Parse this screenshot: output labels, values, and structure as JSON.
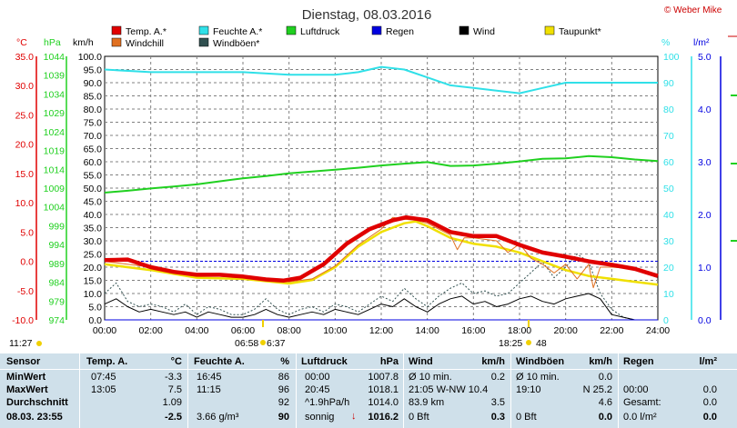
{
  "title": "Dienstag, 08.03.2016",
  "copyright": "© Weber Mike",
  "axis_units": {
    "temp": "°C",
    "pressure": "hPa",
    "wind": "km/h",
    "humidity": "%",
    "rain": "l/m²"
  },
  "legend": [
    {
      "label": "Temp. A.*",
      "color": "#e00000"
    },
    {
      "label": "Feuchte A.*",
      "color": "#30e0e8"
    },
    {
      "label": "Luftdruck",
      "color": "#20d020"
    },
    {
      "label": "Regen",
      "color": "#0000e0"
    },
    {
      "label": "Wind",
      "color": "#000000"
    },
    {
      "label": "Taupunkt*",
      "color": "#f0e000"
    },
    {
      "label": "Windchill",
      "color": "#e07020"
    },
    {
      "label": "Windböen*",
      "color": "#305050"
    }
  ],
  "colors": {
    "temp": "#e00000",
    "humidity": "#30e0e8",
    "pressure": "#20d020",
    "rain": "#0000e0",
    "wind": "#000000",
    "dewpoint": "#f0e000",
    "windchill": "#e07020",
    "gust": "#305050",
    "grid": "#808080"
  },
  "sun": {
    "sunrise_label": "06:58",
    "sunset_label": "18:25",
    "day_length_a": "6:37",
    "day_length_b": "48",
    "now_label": "11:27"
  },
  "chart_data": {
    "type": "line",
    "x_ticks": [
      "00:00",
      "02:00",
      "04:00",
      "06:00",
      "08:00",
      "10:00",
      "12:00",
      "14:00",
      "16:00",
      "18:00",
      "20:00",
      "22:00",
      "24:00"
    ],
    "temp_ticks": [
      "35.0",
      "30.0",
      "25.0",
      "20.0",
      "15.0",
      "10.0",
      "5.0",
      "0.0",
      "-5.0",
      "-10.0"
    ],
    "pressure_ticks": [
      "1044",
      "1039",
      "1034",
      "1029",
      "1024",
      "1019",
      "1014",
      "1009",
      "1004",
      "999",
      "994",
      "989",
      "984",
      "979",
      "974"
    ],
    "wind_ticks": [
      "100.0",
      "95.0",
      "90.0",
      "85.0",
      "80.0",
      "75.0",
      "70.0",
      "65.0",
      "60.0",
      "55.0",
      "50.0",
      "45.0",
      "40.0",
      "35.0",
      "30.0",
      "25.0",
      "20.0",
      "15.0",
      "10.0",
      "5.0",
      "0.0"
    ],
    "humidity_ticks": [
      "100",
      "90",
      "80",
      "70",
      "60",
      "50",
      "40",
      "30",
      "20",
      "10",
      "0"
    ],
    "rain_ticks": [
      "5.0",
      "4.0",
      "3.0",
      "2.0",
      "1.0",
      "0.0"
    ],
    "temp_range": [
      -10,
      35
    ],
    "x_range_hours": [
      0,
      24
    ],
    "series": [
      {
        "name": "Temp. A.*",
        "axis": "temp",
        "x": [
          0,
          1,
          2,
          3,
          4,
          5,
          6,
          7,
          7.75,
          8.5,
          9.5,
          10.5,
          11.5,
          12.5,
          13.08,
          14,
          15,
          16,
          17,
          18,
          19,
          20,
          21,
          22,
          23,
          24
        ],
        "y": [
          0.2,
          0.3,
          -1.0,
          -1.8,
          -2.3,
          -2.3,
          -2.6,
          -3.1,
          -3.3,
          -2.8,
          -0.5,
          3.0,
          5.5,
          7.0,
          7.5,
          7.0,
          5.0,
          4.3,
          4.3,
          2.8,
          1.5,
          0.8,
          0.0,
          -0.6,
          -1.3,
          -2.5
        ]
      },
      {
        "name": "Feuchte A.*",
        "axis": "humidity",
        "x": [
          0,
          2,
          4,
          6,
          8,
          10,
          11,
          12,
          13,
          14,
          15,
          16,
          17,
          18,
          19,
          20,
          21,
          22,
          23,
          24
        ],
        "y": [
          95,
          94,
          94,
          94,
          93,
          93,
          94,
          96,
          95,
          92,
          89,
          88,
          87,
          86,
          88,
          90,
          90,
          90,
          90,
          90
        ]
      },
      {
        "name": "Luftdruck",
        "axis": "pressure",
        "x": [
          0,
          1,
          2,
          3,
          4,
          5,
          6,
          7,
          8,
          9,
          10,
          11,
          12,
          13,
          14,
          15,
          16,
          17,
          18,
          19,
          20,
          21,
          22,
          23,
          24
        ],
        "y": [
          1007.8,
          1008.3,
          1008.9,
          1009.4,
          1010.0,
          1010.8,
          1011.6,
          1012.2,
          1012.9,
          1013.4,
          1013.9,
          1014.4,
          1015.0,
          1015.5,
          1015.9,
          1014.9,
          1015.0,
          1015.5,
          1016.1,
          1016.8,
          1016.9,
          1017.5,
          1017.2,
          1016.6,
          1016.2
        ]
      },
      {
        "name": "Taupunkt*",
        "axis": "temp",
        "x": [
          0,
          2,
          4,
          6,
          8,
          9,
          10,
          11,
          12,
          13,
          13.5,
          14,
          15,
          16,
          17,
          18,
          19,
          20,
          21,
          22,
          23,
          24
        ],
        "y": [
          -0.5,
          -1.5,
          -2.8,
          -3.0,
          -3.8,
          -3.2,
          -1.0,
          2.5,
          5.0,
          6.5,
          6.8,
          6.0,
          4.0,
          3.0,
          2.5,
          1.5,
          0.0,
          -1.5,
          -2.5,
          -3.0,
          -3.5,
          -4.0
        ]
      },
      {
        "name": "Windchill",
        "axis": "temp",
        "x": [
          0,
          2,
          4,
          6,
          8,
          9,
          10,
          11,
          12,
          12.5,
          13,
          13.5,
          14,
          15,
          15.3,
          15.6,
          16,
          17,
          17.5,
          18,
          18.5,
          19,
          19.5,
          20,
          20.5,
          21,
          21.2,
          21.5,
          22,
          23,
          24
        ],
        "y": [
          0.0,
          -1.0,
          -2.3,
          -2.8,
          -3.5,
          -3.0,
          -0.8,
          2.8,
          5.5,
          7.5,
          7.2,
          7.0,
          6.5,
          4.5,
          2.0,
          4.0,
          4.0,
          3.5,
          1.5,
          3.0,
          0.5,
          -0.5,
          -2.0,
          -0.5,
          -3.0,
          -0.5,
          -4.5,
          -1.0,
          -1.0,
          -1.3,
          -2.5
        ]
      },
      {
        "name": "Wind",
        "axis": "wind",
        "x": [
          0,
          0.5,
          1,
          1.5,
          2,
          2.5,
          3,
          3.5,
          4,
          4.5,
          5,
          5.5,
          6,
          6.5,
          7,
          7.5,
          8,
          8.5,
          9,
          9.5,
          10,
          10.5,
          11,
          11.5,
          12,
          12.5,
          13,
          13.5,
          14,
          14.5,
          15,
          15.5,
          16,
          16.5,
          17,
          17.5,
          18,
          18.5,
          19,
          19.5,
          20,
          20.5,
          21,
          21.5,
          22,
          22.5,
          23,
          24
        ],
        "y": [
          6,
          8,
          5,
          3,
          4,
          3,
          2,
          3,
          1,
          3,
          2,
          1,
          1,
          2,
          4,
          2,
          1,
          2,
          3,
          2,
          4,
          3,
          2,
          4,
          6,
          5,
          8,
          5,
          3,
          6,
          8,
          9,
          6,
          7,
          5,
          6,
          8,
          9,
          7,
          6,
          8,
          9,
          10,
          8,
          2,
          1,
          0,
          0
        ]
      },
      {
        "name": "Windböen*",
        "axis": "wind",
        "x": [
          0,
          0.5,
          1,
          1.5,
          2,
          2.5,
          3,
          3.5,
          4,
          4.5,
          5,
          5.5,
          6,
          6.5,
          7,
          7.5,
          8,
          8.5,
          9,
          9.5,
          10,
          10.5,
          11,
          11.5,
          12,
          12.5,
          13,
          13.5,
          14,
          14.5,
          15,
          15.5,
          16,
          16.5,
          17,
          17.5,
          18,
          18.5,
          19,
          19.5,
          20,
          20.5,
          21,
          21.5,
          22,
          22.5,
          23,
          24
        ],
        "y": [
          10,
          14,
          7,
          5,
          6,
          5,
          3,
          6,
          2,
          5,
          4,
          2,
          2,
          4,
          8,
          4,
          2,
          4,
          5,
          3,
          6,
          5,
          3,
          6,
          9,
          7,
          12,
          8,
          5,
          9,
          12,
          14,
          10,
          11,
          9,
          10,
          14,
          18,
          22,
          16,
          20,
          25,
          22,
          10,
          4,
          1,
          0,
          0
        ]
      }
    ],
    "rain_series": {
      "name": "Regen",
      "axis": "rain",
      "x": [
        0,
        24
      ],
      "y": [
        0,
        0
      ]
    },
    "reference_lines": [
      {
        "axis": "temp",
        "value": 0,
        "style": "dashed",
        "color": "#0000e0"
      }
    ]
  },
  "table": {
    "headers": {
      "sensor": "Sensor",
      "temp": "Temp. A.",
      "temp_unit": "°C",
      "hum": "Feuchte A.",
      "hum_unit": "%",
      "press": "Luftdruck",
      "press_unit": "hPa",
      "wind": "Wind",
      "wind_unit": "km/h",
      "gust": "Windböen",
      "gust_unit": "km/h",
      "rain": "Regen",
      "rain_unit": "l/m²"
    },
    "rows": [
      {
        "label": "MinWert",
        "temp_time": "07:45",
        "temp_val": "-3.3",
        "hum_time": "16:45",
        "hum_val": "86",
        "press_time": "00:00",
        "press_val": "1007.8",
        "wind_info": "Ø 10 min.",
        "wind_val": "0.2",
        "gust_info": "Ø 10 min.",
        "gust_val": "0.0",
        "rain_info": "",
        "rain_val": ""
      },
      {
        "label": "MaxWert",
        "temp_time": "13:05",
        "temp_val": "7.5",
        "hum_time": "11:15",
        "hum_val": "96",
        "press_time": "20:45",
        "press_val": "1018.1",
        "wind_info": "21:05  W-NW 10.4",
        "wind_val": "",
        "gust_info": "19:10",
        "gust_val": "N 25.2",
        "rain_info": "00:00",
        "rain_val": "0.0"
      },
      {
        "label": "Durchschnitt",
        "temp_time": "",
        "temp_val": "1.09",
        "hum_time": "",
        "hum_val": "92",
        "press_time": "^1.9hPa/h",
        "press_val": "1014.0",
        "wind_info": "83.9 km",
        "wind_val": "3.5",
        "gust_info": "",
        "gust_val": "4.6",
        "rain_info": "Gesamt:",
        "rain_val": "0.0"
      },
      {
        "label": "08.03.  23:55",
        "temp_time": "",
        "temp_val": "-2.5",
        "hum_time": "3.66 g/m³",
        "hum_val": "90",
        "press_time": "sonnig",
        "press_val": "1016.2",
        "wind_info": "0 Bft",
        "wind_val": "0.3",
        "gust_info": "0 Bft",
        "gust_val": "0.0",
        "rain_info": "0.0 l/m²",
        "rain_val": "0.0"
      }
    ]
  }
}
